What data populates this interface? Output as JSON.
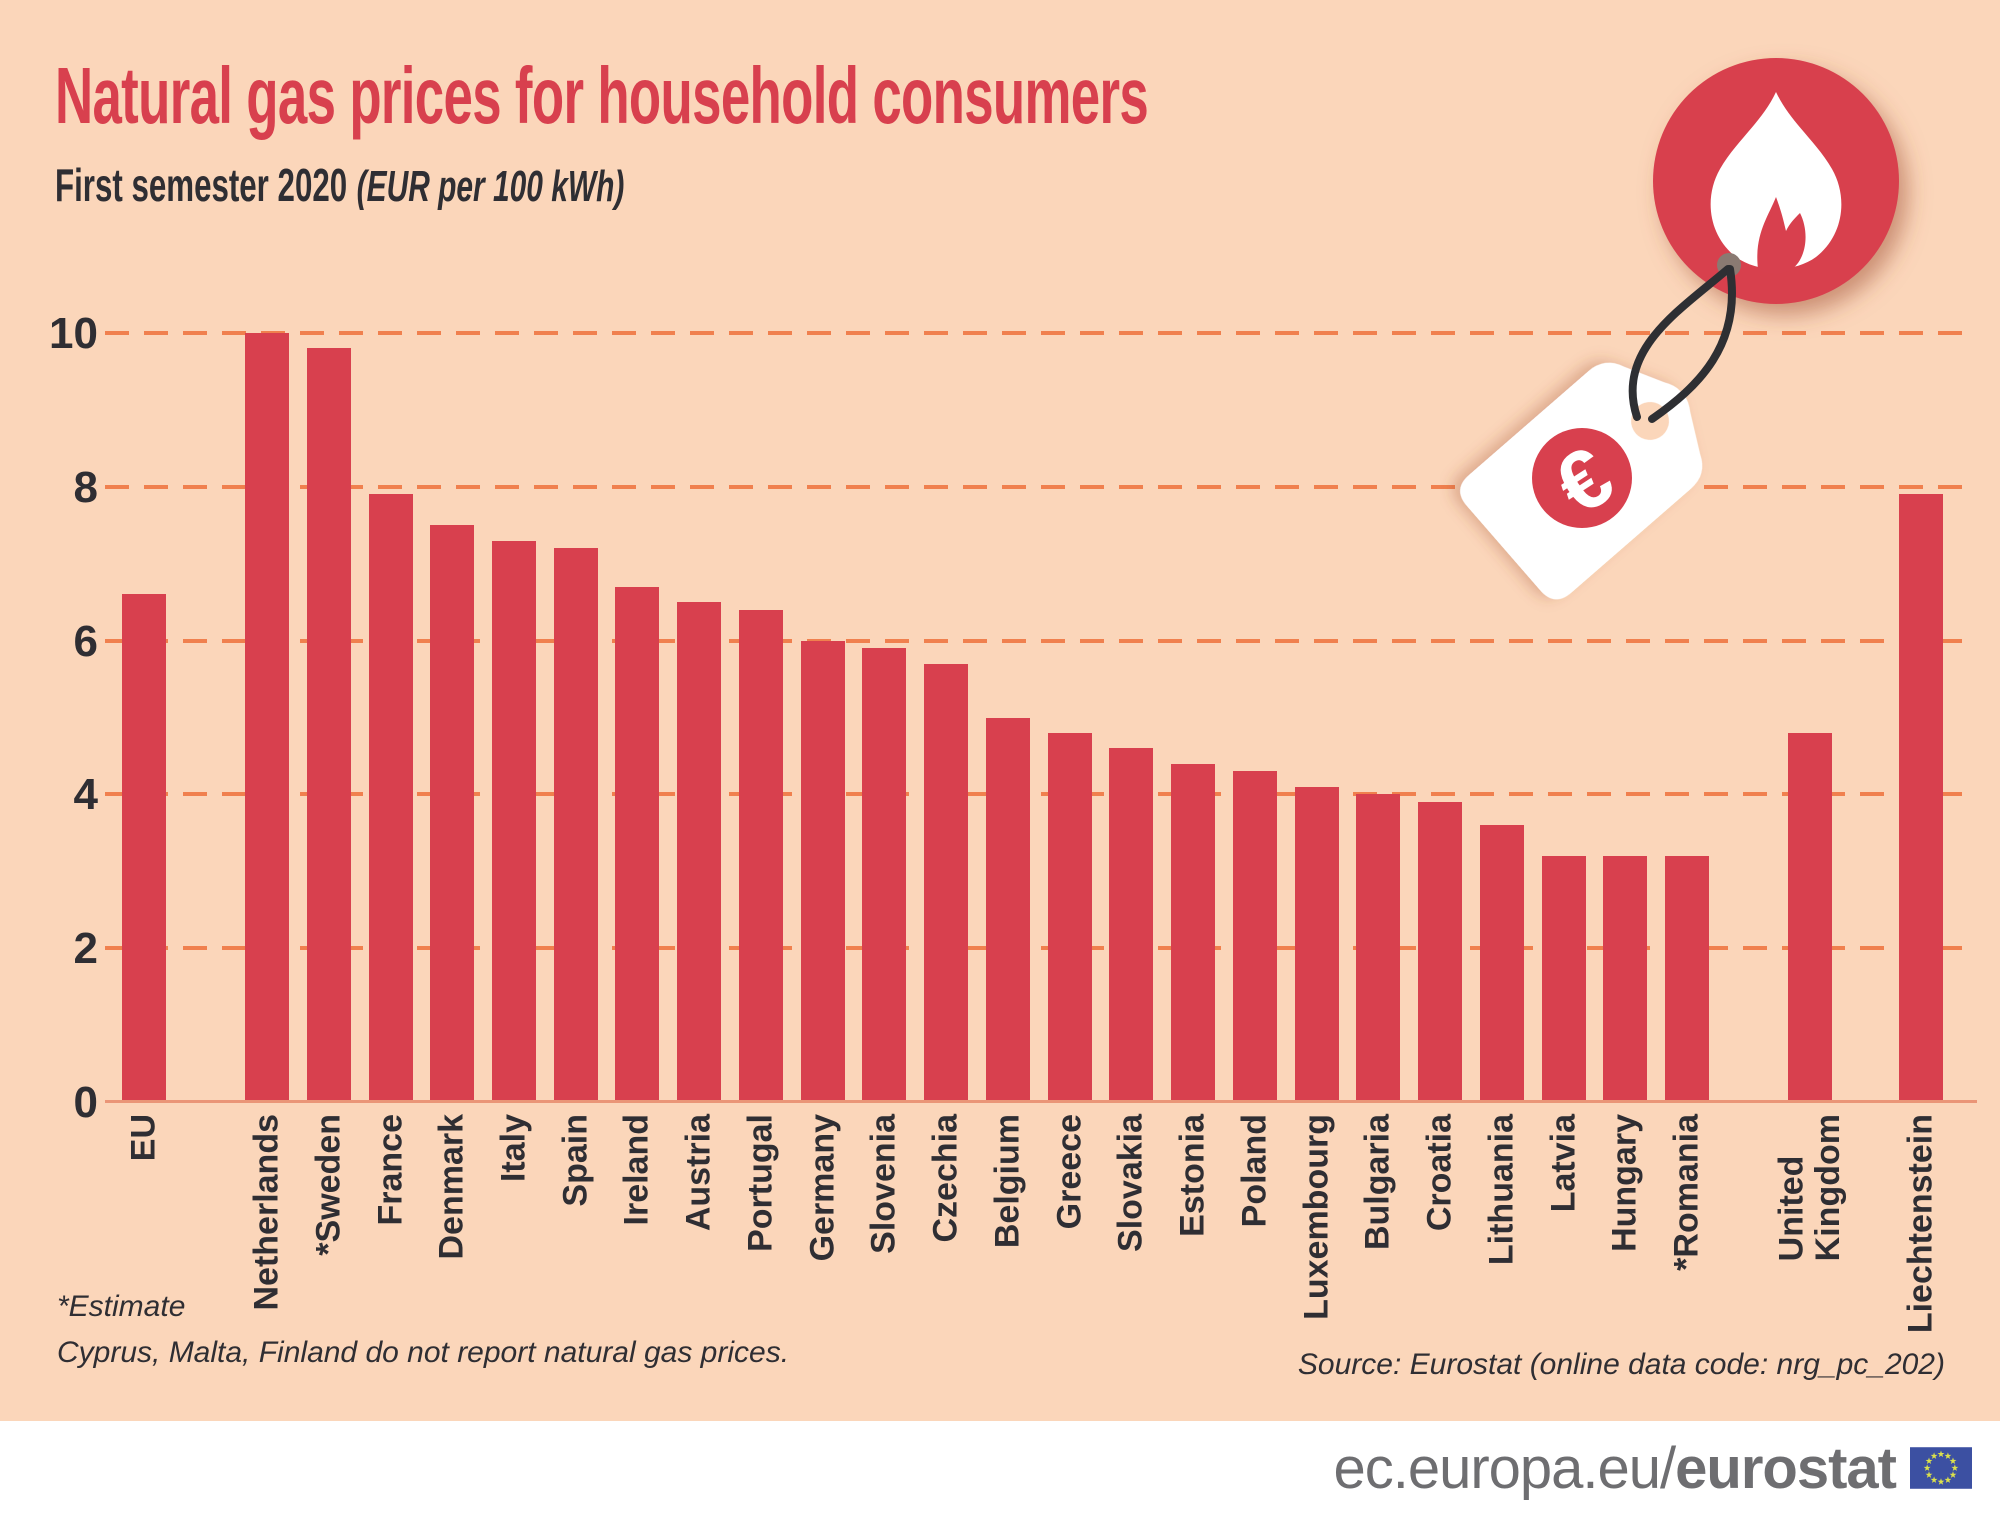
{
  "title": "Natural gas prices for household consumers",
  "subtitle": "First semester 2020",
  "unit_note": "(EUR per 100 kWh)",
  "footnote_line1": "*Estimate",
  "footnote_line2": "Cyprus, Malta, Finland do not report natural gas prices.",
  "source": "Source: Eurostat (online data code: nrg_pc_202)",
  "footer": {
    "url_regular": "ec.europa.eu/",
    "url_bold": "eurostat",
    "flag_icon": "eu-flag-icon"
  },
  "decoration": {
    "flame_icon": "flame-icon",
    "price_tag_icon": "euro-price-tag-icon",
    "euro_symbol": "€"
  },
  "colors": {
    "background": "#fbd6ba",
    "bar": "#d8404e",
    "title": "#d8404e",
    "text_dark": "#2f2e33",
    "grid_dash": "#f0804e",
    "axis_line": "#ea9577",
    "footer_text": "#6e6e71",
    "flag_blue": "#3c50a2",
    "flag_stars": "#dce14b",
    "white": "#ffffff"
  },
  "chart_data": {
    "type": "bar",
    "title": "Natural gas prices for household consumers, first semester 2020",
    "ylabel": "EUR per 100 kWh",
    "xlabel": "",
    "ylim": [
      0,
      10
    ],
    "yticks": [
      0,
      2,
      4,
      6,
      8,
      10
    ],
    "grid": "horizontal dashed",
    "legend_position": "none",
    "bar_color": "#d8404e",
    "bars": [
      {
        "label": "EU",
        "value": 6.6,
        "group": "eu-aggregate"
      },
      {
        "label": "Netherlands",
        "value": 10.0,
        "group": "eu-members"
      },
      {
        "label": "*Sweden",
        "value": 9.8,
        "group": "eu-members"
      },
      {
        "label": "France",
        "value": 7.9,
        "group": "eu-members"
      },
      {
        "label": "Denmark",
        "value": 7.5,
        "group": "eu-members"
      },
      {
        "label": "Italy",
        "value": 7.3,
        "group": "eu-members"
      },
      {
        "label": "Spain",
        "value": 7.2,
        "group": "eu-members"
      },
      {
        "label": "Ireland",
        "value": 6.7,
        "group": "eu-members"
      },
      {
        "label": "Austria",
        "value": 6.5,
        "group": "eu-members"
      },
      {
        "label": "Portugal",
        "value": 6.4,
        "group": "eu-members"
      },
      {
        "label": "Germany",
        "value": 6.0,
        "group": "eu-members"
      },
      {
        "label": "Slovenia",
        "value": 5.9,
        "group": "eu-members"
      },
      {
        "label": "Czechia",
        "value": 5.7,
        "group": "eu-members"
      },
      {
        "label": "Belgium",
        "value": 5.0,
        "group": "eu-members"
      },
      {
        "label": "Greece",
        "value": 4.8,
        "group": "eu-members"
      },
      {
        "label": "Slovakia",
        "value": 4.6,
        "group": "eu-members"
      },
      {
        "label": "Estonia",
        "value": 4.4,
        "group": "eu-members"
      },
      {
        "label": "Poland",
        "value": 4.3,
        "group": "eu-members"
      },
      {
        "label": "Luxembourg",
        "value": 4.1,
        "group": "eu-members"
      },
      {
        "label": "Bulgaria",
        "value": 4.0,
        "group": "eu-members"
      },
      {
        "label": "Croatia",
        "value": 3.9,
        "group": "eu-members"
      },
      {
        "label": "Lithuania",
        "value": 3.6,
        "group": "eu-members"
      },
      {
        "label": "Latvia",
        "value": 3.2,
        "group": "eu-members"
      },
      {
        "label": "Hungary",
        "value": 3.2,
        "group": "eu-members"
      },
      {
        "label": "*Romania",
        "value": 3.2,
        "group": "eu-members"
      },
      {
        "label": "United Kingdom",
        "value": 4.8,
        "group": "non-eu-efta"
      },
      {
        "label": "Liechtenstein",
        "value": 7.9,
        "group": "non-eu-efta"
      }
    ]
  }
}
